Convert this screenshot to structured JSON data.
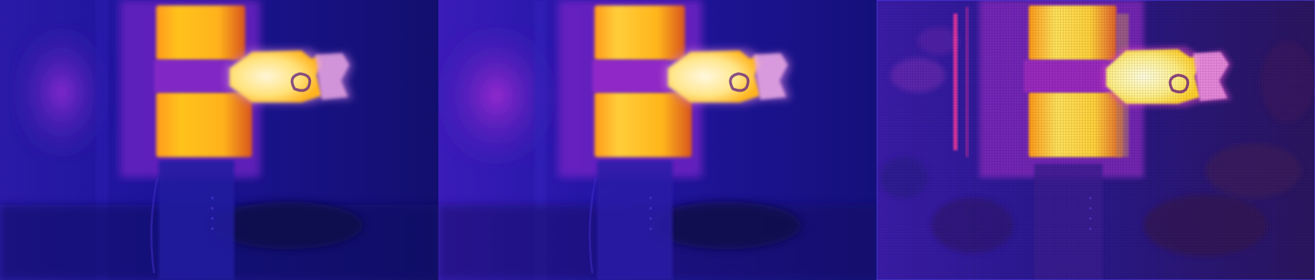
{
  "figure": {
    "panel_count": 3,
    "palette": {
      "background_deep": "#14127a",
      "background_mid": "#2a1aa8",
      "glow_purple": "#7a23c8",
      "glow_magenta": "#b02aa8",
      "warm_orange": "#ff9a1a",
      "hot_yellow": "#ffd21a",
      "hottest_white": "#fff3c8",
      "dark_shadow": "#0e0b55",
      "artifact_brown": "#3a1a55",
      "artifact_pink": "#ff3aa0"
    },
    "panels": [
      {
        "id": "panel-1",
        "variant": "smooth"
      },
      {
        "id": "panel-2",
        "variant": "smooth-bright"
      },
      {
        "id": "panel-3",
        "variant": "noisy-artifacted"
      }
    ]
  }
}
